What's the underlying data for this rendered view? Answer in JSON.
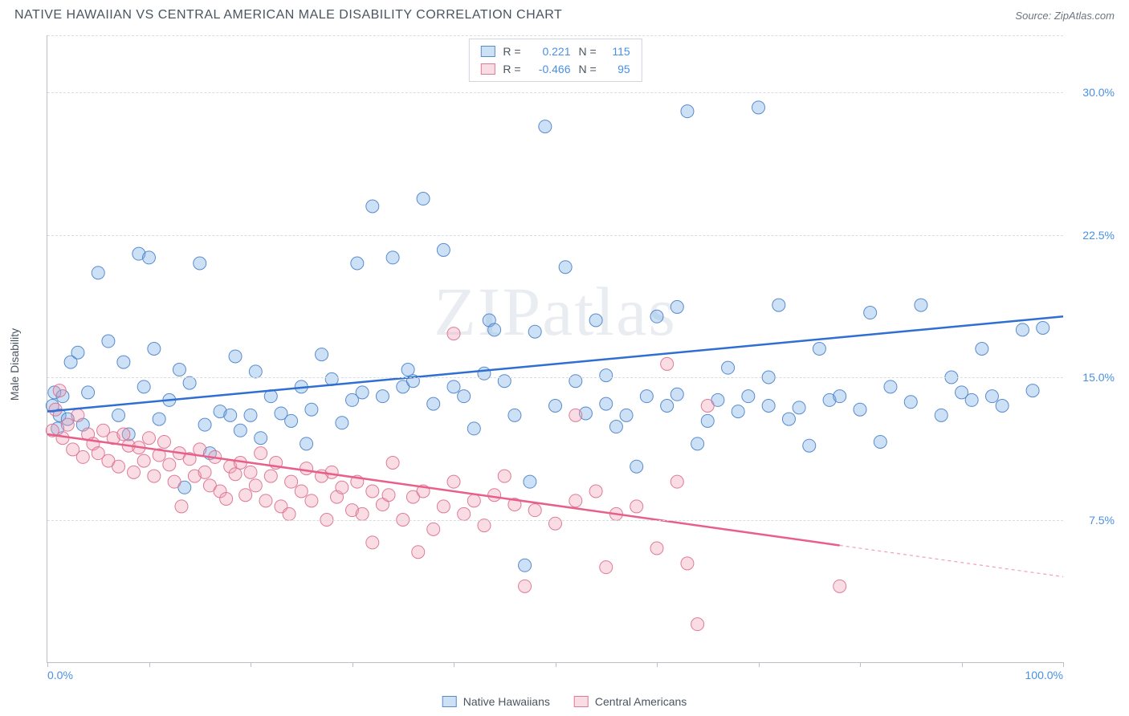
{
  "header": {
    "title": "NATIVE HAWAIIAN VS CENTRAL AMERICAN MALE DISABILITY CORRELATION CHART",
    "source_label": "Source:",
    "source_name": "ZipAtlas.com"
  },
  "watermark": "ZIPatlas",
  "chart": {
    "type": "scatter",
    "y_axis_label": "Male Disability",
    "background_color": "#ffffff",
    "grid_color": "#d8dde2",
    "axis_color": "#b9c0c8",
    "text_color": "#4a5560",
    "tick_label_color": "#4a90e2",
    "xlim": [
      0,
      100
    ],
    "ylim": [
      0,
      33
    ],
    "y_gridlines": [
      7.5,
      15.0,
      22.5,
      30.0,
      33.0
    ],
    "y_tick_labels": [
      "7.5%",
      "15.0%",
      "22.5%",
      "30.0%"
    ],
    "x_ticks": [
      0,
      10,
      20,
      30,
      40,
      50,
      60,
      70,
      80,
      90,
      100
    ],
    "x_tick_labels_shown": {
      "0": "0.0%",
      "100": "100.0%"
    },
    "marker_radius": 8,
    "marker_opacity": 0.45,
    "marker_stroke_opacity": 0.9,
    "line_width": 2.5,
    "series": [
      {
        "key": "native_hawaiians",
        "label": "Native Hawaiians",
        "color": "#6ea8e6",
        "line_color": "#2e6fd1",
        "fill_rgba": "rgba(110,168,230,0.35)",
        "stroke_rgba": "rgba(74,128,200,0.9)",
        "stats": {
          "R_label": "R =",
          "R": "0.221",
          "N_label": "N =",
          "N": "115"
        },
        "regression": {
          "x1": 0,
          "y1": 13.2,
          "x2": 100,
          "y2": 18.2,
          "dashed_from_x": null
        },
        "points": [
          [
            0.5,
            13.5
          ],
          [
            0.7,
            14.2
          ],
          [
            1.0,
            12.3
          ],
          [
            1.2,
            13.0
          ],
          [
            1.5,
            14.0
          ],
          [
            2,
            12.8
          ],
          [
            2.3,
            15.8
          ],
          [
            3,
            16.3
          ],
          [
            3.5,
            12.5
          ],
          [
            4,
            14.2
          ],
          [
            5,
            20.5
          ],
          [
            6,
            16.9
          ],
          [
            7,
            13.0
          ],
          [
            7.5,
            15.8
          ],
          [
            8,
            12.0
          ],
          [
            9,
            21.5
          ],
          [
            9.5,
            14.5
          ],
          [
            10,
            21.3
          ],
          [
            10.5,
            16.5
          ],
          [
            11,
            12.8
          ],
          [
            12,
            13.8
          ],
          [
            13,
            15.4
          ],
          [
            13.5,
            9.2
          ],
          [
            14,
            14.7
          ],
          [
            15,
            21.0
          ],
          [
            15.5,
            12.5
          ],
          [
            16,
            11.0
          ],
          [
            17,
            13.2
          ],
          [
            18,
            13.0
          ],
          [
            18.5,
            16.1
          ],
          [
            19,
            12.2
          ],
          [
            20,
            13.0
          ],
          [
            20.5,
            15.3
          ],
          [
            21,
            11.8
          ],
          [
            22,
            14.0
          ],
          [
            23,
            13.1
          ],
          [
            24,
            12.7
          ],
          [
            25,
            14.5
          ],
          [
            25.5,
            11.5
          ],
          [
            26,
            13.3
          ],
          [
            27,
            16.2
          ],
          [
            28,
            14.9
          ],
          [
            29,
            12.6
          ],
          [
            30,
            13.8
          ],
          [
            30.5,
            21.0
          ],
          [
            31,
            14.2
          ],
          [
            32,
            24.0
          ],
          [
            33,
            14.0
          ],
          [
            34,
            21.3
          ],
          [
            35,
            14.5
          ],
          [
            35.5,
            15.4
          ],
          [
            36,
            14.8
          ],
          [
            37,
            24.4
          ],
          [
            38,
            13.6
          ],
          [
            39,
            21.7
          ],
          [
            40,
            14.5
          ],
          [
            41,
            14.0
          ],
          [
            42,
            12.3
          ],
          [
            43,
            15.2
          ],
          [
            43.5,
            18.0
          ],
          [
            44,
            17.5
          ],
          [
            45,
            14.8
          ],
          [
            46,
            13.0
          ],
          [
            47,
            5.1
          ],
          [
            47.5,
            9.5
          ],
          [
            48,
            17.4
          ],
          [
            49,
            28.2
          ],
          [
            50,
            13.5
          ],
          [
            51,
            20.8
          ],
          [
            52,
            14.8
          ],
          [
            53,
            13.1
          ],
          [
            54,
            18.0
          ],
          [
            55,
            15.1
          ],
          [
            56,
            12.4
          ],
          [
            57,
            13.0
          ],
          [
            58,
            10.3
          ],
          [
            59,
            14.0
          ],
          [
            60,
            18.2
          ],
          [
            61,
            13.5
          ],
          [
            62,
            18.7
          ],
          [
            63,
            29.0
          ],
          [
            64,
            11.5
          ],
          [
            65,
            12.7
          ],
          [
            66,
            13.8
          ],
          [
            67,
            15.5
          ],
          [
            68,
            13.2
          ],
          [
            69,
            14.0
          ],
          [
            70,
            29.2
          ],
          [
            71,
            13.5
          ],
          [
            72,
            18.8
          ],
          [
            73,
            12.8
          ],
          [
            74,
            13.4
          ],
          [
            75,
            11.4
          ],
          [
            76,
            16.5
          ],
          [
            77,
            13.8
          ],
          [
            78,
            14.0
          ],
          [
            80,
            13.3
          ],
          [
            81,
            18.4
          ],
          [
            82,
            11.6
          ],
          [
            83,
            14.5
          ],
          [
            85,
            13.7
          ],
          [
            86,
            18.8
          ],
          [
            88,
            13.0
          ],
          [
            89,
            15.0
          ],
          [
            90,
            14.2
          ],
          [
            91,
            13.8
          ],
          [
            92,
            16.5
          ],
          [
            93,
            14.0
          ],
          [
            94,
            13.5
          ],
          [
            96,
            17.5
          ],
          [
            97,
            14.3
          ],
          [
            98,
            17.6
          ],
          [
            55,
            13.6
          ],
          [
            62,
            14.1
          ],
          [
            71,
            15.0
          ]
        ]
      },
      {
        "key": "central_americans",
        "label": "Central Americans",
        "color": "#f29fb3",
        "line_color": "#e85f8a",
        "fill_rgba": "rgba(242,159,179,0.35)",
        "stroke_rgba": "rgba(220,110,140,0.9)",
        "stats": {
          "R_label": "R =",
          "R": "-0.466",
          "N_label": "N =",
          "N": "95"
        },
        "regression": {
          "x1": 0,
          "y1": 12.0,
          "x2": 100,
          "y2": 4.5,
          "dashed_from_x": 78
        },
        "points": [
          [
            0.5,
            12.2
          ],
          [
            0.8,
            13.3
          ],
          [
            1.2,
            14.3
          ],
          [
            1.5,
            11.8
          ],
          [
            2,
            12.5
          ],
          [
            2.5,
            11.2
          ],
          [
            3,
            13.0
          ],
          [
            3.5,
            10.8
          ],
          [
            4,
            12.0
          ],
          [
            4.5,
            11.5
          ],
          [
            5,
            11.0
          ],
          [
            5.5,
            12.2
          ],
          [
            6,
            10.6
          ],
          [
            6.5,
            11.8
          ],
          [
            7,
            10.3
          ],
          [
            7.5,
            12.0
          ],
          [
            8,
            11.4
          ],
          [
            8.5,
            10.0
          ],
          [
            9,
            11.3
          ],
          [
            9.5,
            10.6
          ],
          [
            10,
            11.8
          ],
          [
            10.5,
            9.8
          ],
          [
            11,
            10.9
          ],
          [
            11.5,
            11.6
          ],
          [
            12,
            10.4
          ],
          [
            12.5,
            9.5
          ],
          [
            13,
            11.0
          ],
          [
            13.2,
            8.2
          ],
          [
            14,
            10.7
          ],
          [
            14.5,
            9.8
          ],
          [
            15,
            11.2
          ],
          [
            15.5,
            10.0
          ],
          [
            16,
            9.3
          ],
          [
            16.5,
            10.8
          ],
          [
            17,
            9.0
          ],
          [
            17.6,
            8.6
          ],
          [
            18,
            10.3
          ],
          [
            18.5,
            9.9
          ],
          [
            19,
            10.5
          ],
          [
            19.5,
            8.8
          ],
          [
            20,
            10.0
          ],
          [
            20.5,
            9.3
          ],
          [
            21,
            11.0
          ],
          [
            21.5,
            8.5
          ],
          [
            22,
            9.8
          ],
          [
            22.5,
            10.5
          ],
          [
            23,
            8.2
          ],
          [
            23.8,
            7.8
          ],
          [
            24,
            9.5
          ],
          [
            25,
            9.0
          ],
          [
            25.5,
            10.2
          ],
          [
            26,
            8.5
          ],
          [
            27,
            9.8
          ],
          [
            27.5,
            7.5
          ],
          [
            28,
            10.0
          ],
          [
            28.5,
            8.7
          ],
          [
            29,
            9.2
          ],
          [
            30,
            8.0
          ],
          [
            30.5,
            9.5
          ],
          [
            31,
            7.8
          ],
          [
            32,
            9.0
          ],
          [
            32,
            6.3
          ],
          [
            33,
            8.3
          ],
          [
            33.6,
            8.8
          ],
          [
            34,
            10.5
          ],
          [
            35,
            7.5
          ],
          [
            36,
            8.7
          ],
          [
            36.5,
            5.8
          ],
          [
            37,
            9.0
          ],
          [
            38,
            7.0
          ],
          [
            39,
            8.2
          ],
          [
            40,
            9.5
          ],
          [
            40,
            17.3
          ],
          [
            41,
            7.8
          ],
          [
            42,
            8.5
          ],
          [
            43,
            7.2
          ],
          [
            44,
            8.8
          ],
          [
            45,
            9.8
          ],
          [
            46,
            8.3
          ],
          [
            47,
            4.0
          ],
          [
            48,
            8.0
          ],
          [
            50,
            7.3
          ],
          [
            52,
            8.5
          ],
          [
            52,
            13.0
          ],
          [
            54,
            9.0
          ],
          [
            55,
            5.0
          ],
          [
            56,
            7.8
          ],
          [
            58,
            8.2
          ],
          [
            60,
            6.0
          ],
          [
            61,
            15.7
          ],
          [
            62,
            9.5
          ],
          [
            63,
            5.2
          ],
          [
            64,
            2.0
          ],
          [
            65,
            13.5
          ],
          [
            78,
            4.0
          ]
        ]
      }
    ],
    "legend_box": {
      "border_color": "#cfd5db",
      "value_color": "#4a90e2"
    },
    "bottom_legend": [
      {
        "swatch": "native_hawaiians",
        "label": "Native Hawaiians"
      },
      {
        "swatch": "central_americans",
        "label": "Central Americans"
      }
    ]
  }
}
